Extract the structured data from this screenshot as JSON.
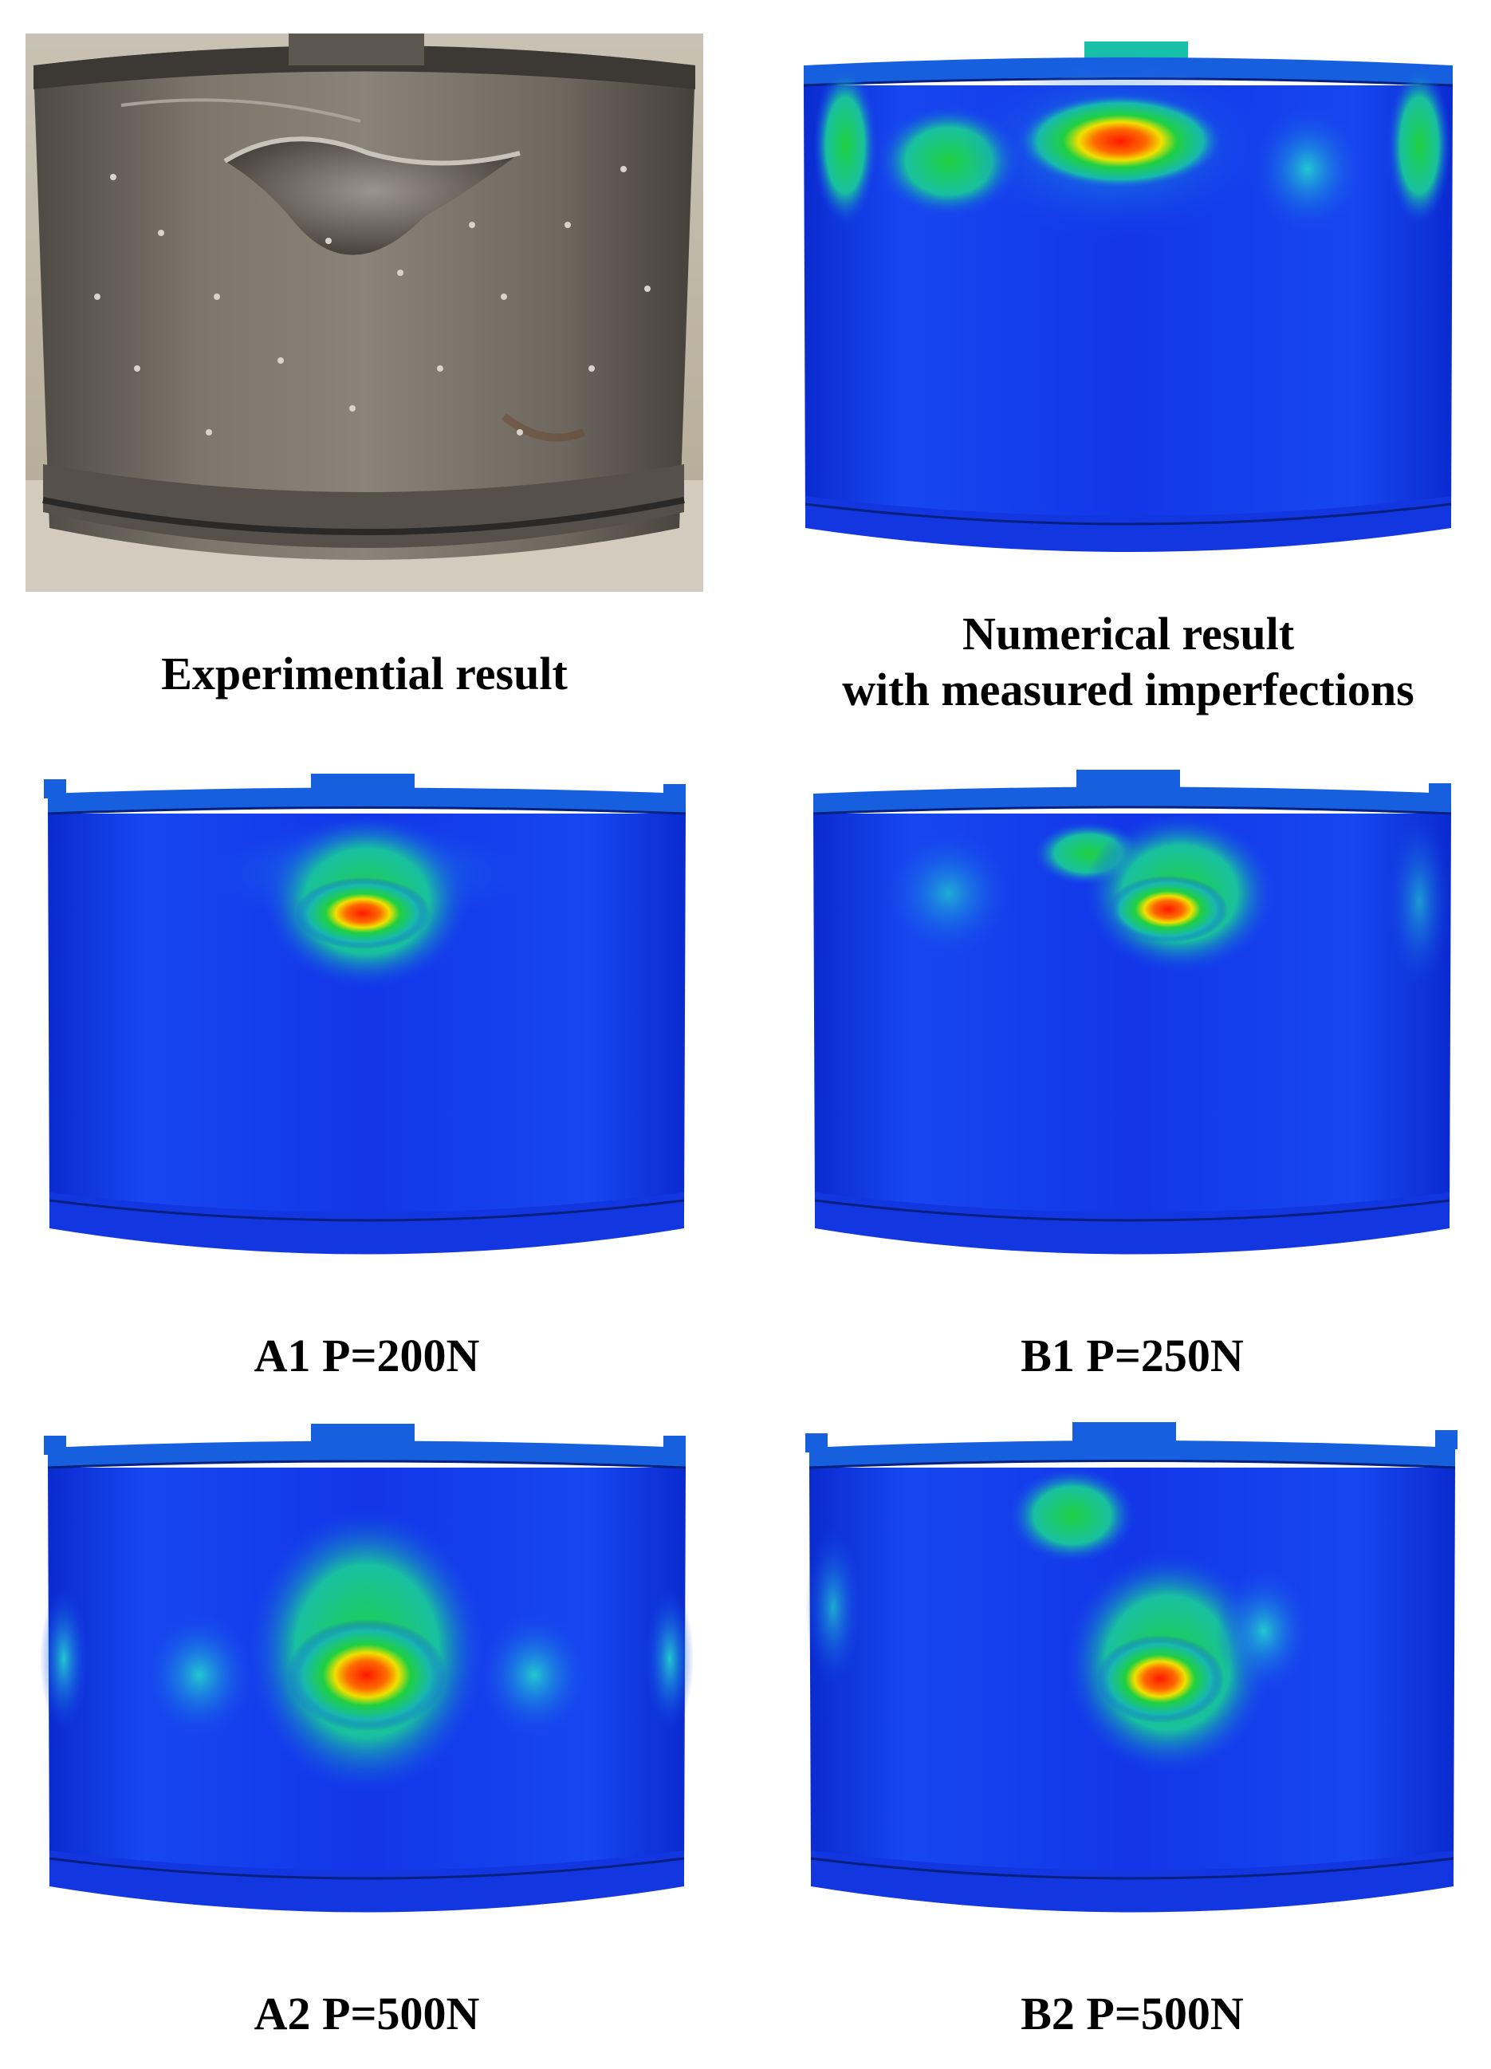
{
  "figure": {
    "panels": [
      {
        "id": "experimental",
        "kind": "photo",
        "caption_lines": [
          "Experimential result"
        ]
      },
      {
        "id": "numerical-measured",
        "kind": "contour",
        "caption_lines": [
          "Numerical result",
          "with measured imperfections"
        ]
      },
      {
        "id": "a1",
        "kind": "contour",
        "caption_lines": [
          "A1  P=200N"
        ]
      },
      {
        "id": "b1",
        "kind": "contour",
        "caption_lines": [
          "B1  P=250N"
        ]
      },
      {
        "id": "a2",
        "kind": "contour",
        "caption_lines": [
          "A2  P=500N"
        ]
      },
      {
        "id": "b2",
        "kind": "contour",
        "caption_lines": [
          "B2  P=500N"
        ]
      }
    ],
    "colors": {
      "contour_low": "#0a2be0",
      "contour_mid": "#1fd040",
      "contour_high": "#ff1800",
      "photo_metal": "#6e675c"
    }
  }
}
